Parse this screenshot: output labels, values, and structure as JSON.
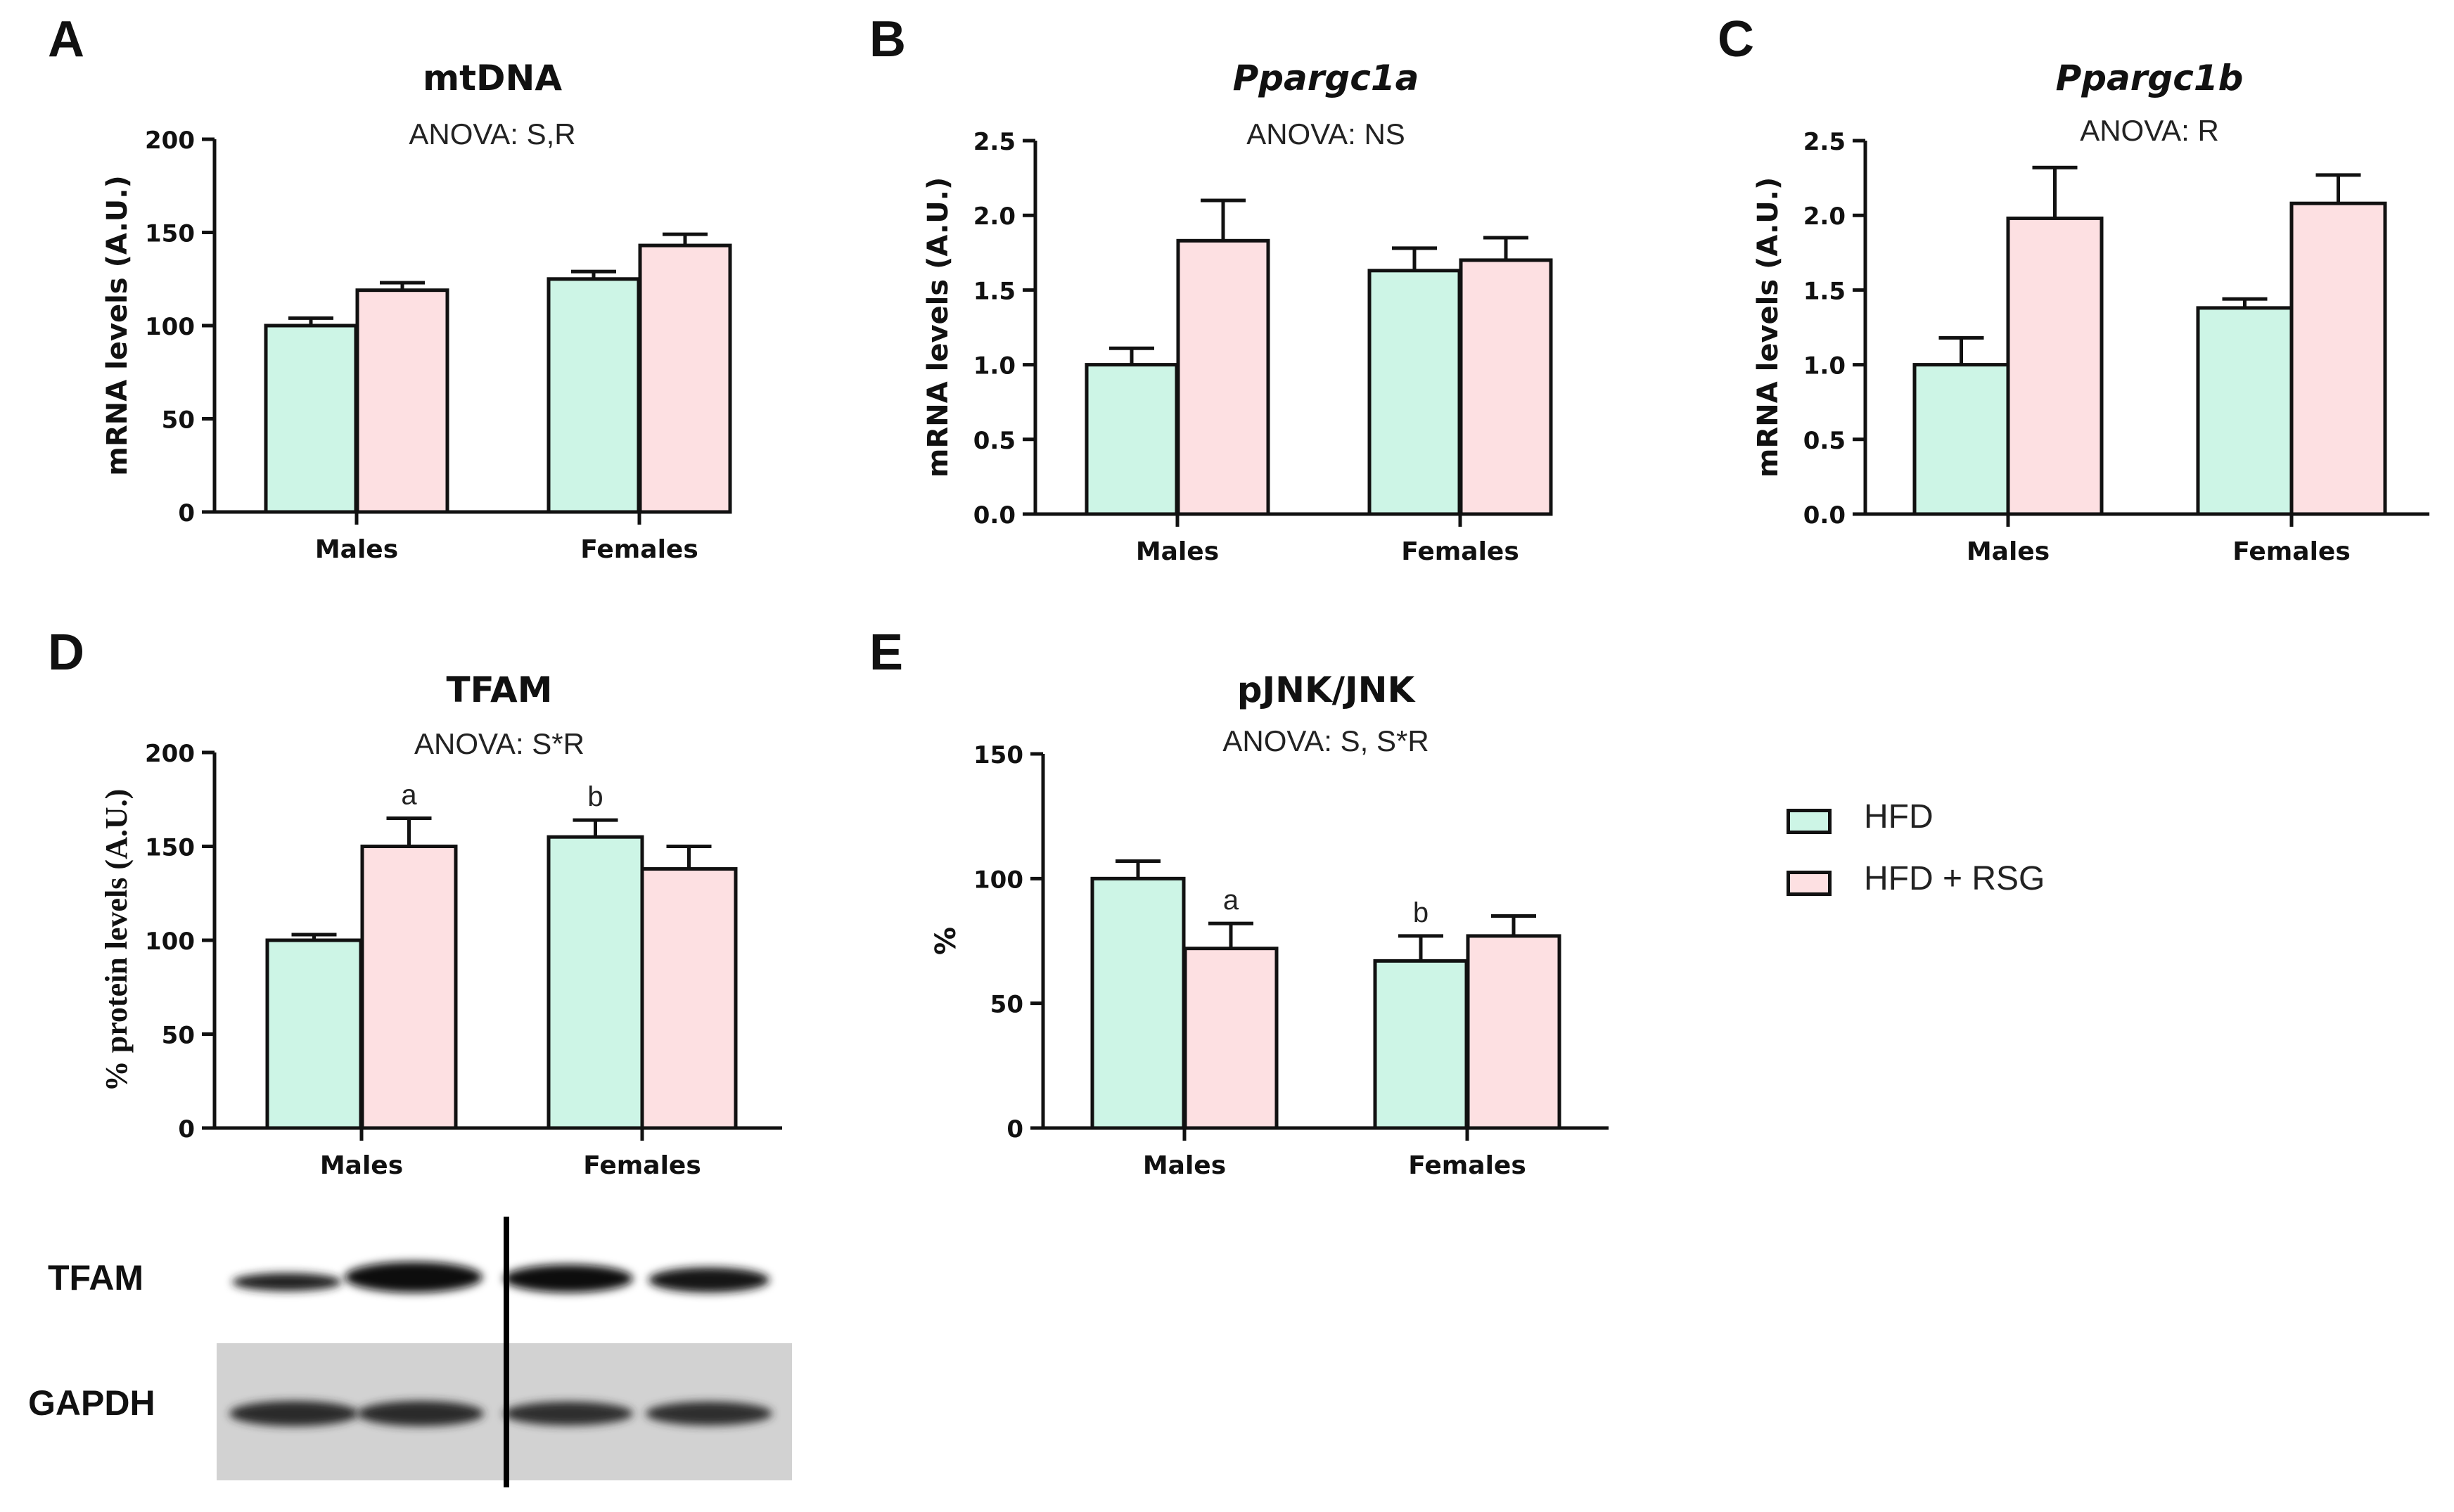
{
  "chart_data": [
    {
      "panel": "A",
      "type": "bar",
      "title": "mtDNA",
      "title_italic": false,
      "subtitle": "ANOVA: S,R",
      "ylabel": "mRNA levels (A.U.)",
      "ylabel_serif": false,
      "ylim": [
        0,
        200
      ],
      "yticks": [
        "0",
        "50",
        "100",
        "150",
        "200"
      ],
      "categories": [
        "Males",
        "Females"
      ],
      "series": [
        {
          "name": "HFD",
          "values": [
            100,
            125
          ],
          "errors": [
            4,
            4
          ]
        },
        {
          "name": "HFD + RSG",
          "values": [
            119,
            143
          ],
          "errors": [
            4,
            6
          ]
        }
      ],
      "annotations": []
    },
    {
      "panel": "B",
      "type": "bar",
      "title": "Ppargc1a",
      "title_italic": true,
      "subtitle": "ANOVA: NS",
      "ylabel": "mRNA levels (A.U.)",
      "ylabel_serif": false,
      "ylim": [
        0,
        2.5
      ],
      "yticks": [
        "0.0",
        "0.5",
        "1.0",
        "1.5",
        "2.0",
        "2.5"
      ],
      "categories": [
        "Males",
        "Females"
      ],
      "series": [
        {
          "name": "HFD",
          "values": [
            1.0,
            1.63
          ],
          "errors": [
            0.11,
            0.15
          ]
        },
        {
          "name": "HFD + RSG",
          "values": [
            1.83,
            1.7
          ],
          "errors": [
            0.27,
            0.15
          ]
        }
      ],
      "annotations": []
    },
    {
      "panel": "C",
      "type": "bar",
      "title": "Ppargc1b",
      "title_italic": true,
      "subtitle": "ANOVA: R",
      "ylabel": "mRNA levels (A.U.)",
      "ylabel_serif": false,
      "ylim": [
        0,
        2.5
      ],
      "yticks": [
        "0.0",
        "0.5",
        "1.0",
        "1.5",
        "2.0",
        "2.5"
      ],
      "categories": [
        "Males",
        "Females"
      ],
      "series": [
        {
          "name": "HFD",
          "values": [
            1.0,
            1.38
          ],
          "errors": [
            0.18,
            0.06
          ]
        },
        {
          "name": "HFD + RSG",
          "values": [
            1.98,
            2.08
          ],
          "errors": [
            0.34,
            0.19
          ]
        }
      ],
      "annotations": []
    },
    {
      "panel": "D",
      "type": "bar",
      "title": "TFAM",
      "title_italic": false,
      "subtitle": "ANOVA: S*R",
      "ylabel": "% protein levels (A.U.)",
      "ylabel_serif": true,
      "ylim": [
        0,
        200
      ],
      "yticks": [
        "0",
        "50",
        "100",
        "150",
        "200"
      ],
      "categories": [
        "Males",
        "Females"
      ],
      "series": [
        {
          "name": "HFD",
          "values": [
            100,
            155
          ],
          "errors": [
            3,
            9
          ]
        },
        {
          "name": "HFD + RSG",
          "values": [
            150,
            138
          ],
          "errors": [
            15,
            12
          ]
        }
      ],
      "annotations": [
        {
          "series": 1,
          "category": 0,
          "text": "a"
        },
        {
          "series": 0,
          "category": 1,
          "text": "b"
        }
      ]
    },
    {
      "panel": "E",
      "type": "bar",
      "title": "pJNK/JNK",
      "title_italic": false,
      "subtitle": "ANOVA: S, S*R",
      "ylabel": "%",
      "ylabel_serif": false,
      "ylim": [
        0,
        150
      ],
      "yticks": [
        "0",
        "50",
        "100",
        "150"
      ],
      "categories": [
        "Males",
        "Females"
      ],
      "series": [
        {
          "name": "HFD",
          "values": [
            100,
            67
          ],
          "errors": [
            7,
            10
          ]
        },
        {
          "name": "HFD + RSG",
          "values": [
            72,
            77
          ],
          "errors": [
            10,
            8
          ]
        }
      ],
      "annotations": [
        {
          "series": 1,
          "category": 0,
          "text": "a"
        },
        {
          "series": 0,
          "category": 1,
          "text": "b"
        }
      ]
    }
  ],
  "colors": {
    "HFD": "#cdf5e6",
    "HFD + RSG": "#fde0e2",
    "axis": "#111111"
  },
  "legend": {
    "placement": "right",
    "items": [
      {
        "label": "HFD",
        "color": "#cdf5e6"
      },
      {
        "label": "HFD + RSG",
        "color": "#fde0e2"
      }
    ]
  },
  "blot": {
    "rows": [
      "TFAM",
      "GAPDH"
    ]
  }
}
